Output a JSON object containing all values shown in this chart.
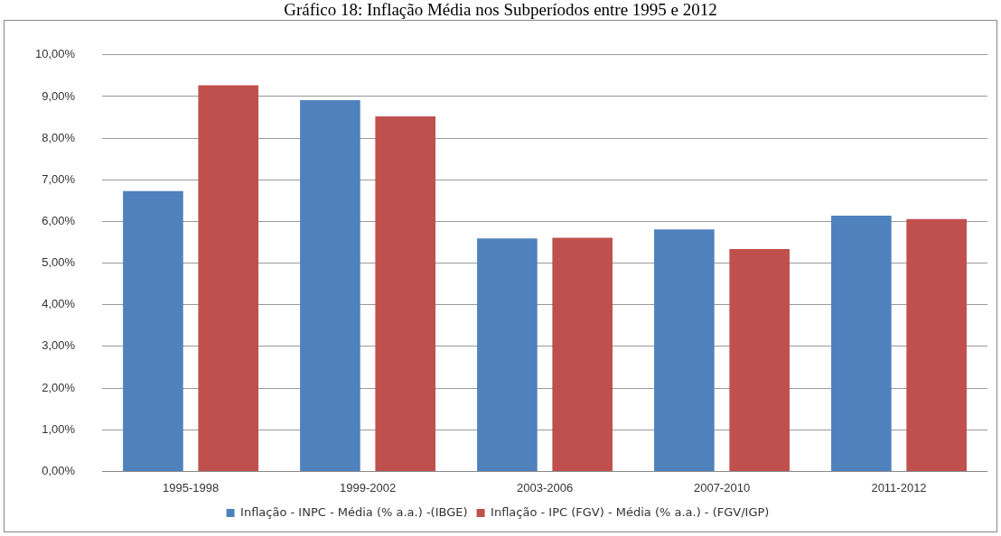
{
  "chart_data": {
    "type": "bar",
    "title": "Gráfico 18: Inflação Média nos Subperíodos entre 1995 e 2012",
    "categories": [
      "1995-1998",
      "1999-2002",
      "2003-2006",
      "2007-2010",
      "2011-2012"
    ],
    "series": [
      {
        "name": "Inflação - INPC - Média (% a.a.) -(IBGE)",
        "color": "#4f81bd",
        "values": [
          6.73,
          8.91,
          5.59,
          5.81,
          6.14
        ]
      },
      {
        "name": "Inflação - IPC (FGV) - Média (% a.a.) - (FGV/IGP)",
        "color": "#c0504d",
        "values": [
          9.27,
          8.52,
          5.61,
          5.34,
          6.06
        ]
      }
    ],
    "ylim": [
      0,
      10
    ],
    "yticks": [
      {
        "value": 0,
        "label": "0,00%"
      },
      {
        "value": 1,
        "label": "1,00%"
      },
      {
        "value": 2,
        "label": "2,00%"
      },
      {
        "value": 3,
        "label": "3,00%"
      },
      {
        "value": 4,
        "label": "4,00%"
      },
      {
        "value": 5,
        "label": "5,00%"
      },
      {
        "value": 6,
        "label": "6,00%"
      },
      {
        "value": 7,
        "label": "7,00%"
      },
      {
        "value": 8,
        "label": "8,00%"
      },
      {
        "value": 9,
        "label": "9,00%"
      },
      {
        "value": 10,
        "label": "10,00%"
      }
    ],
    "grid": "y",
    "legend": "bottom"
  }
}
